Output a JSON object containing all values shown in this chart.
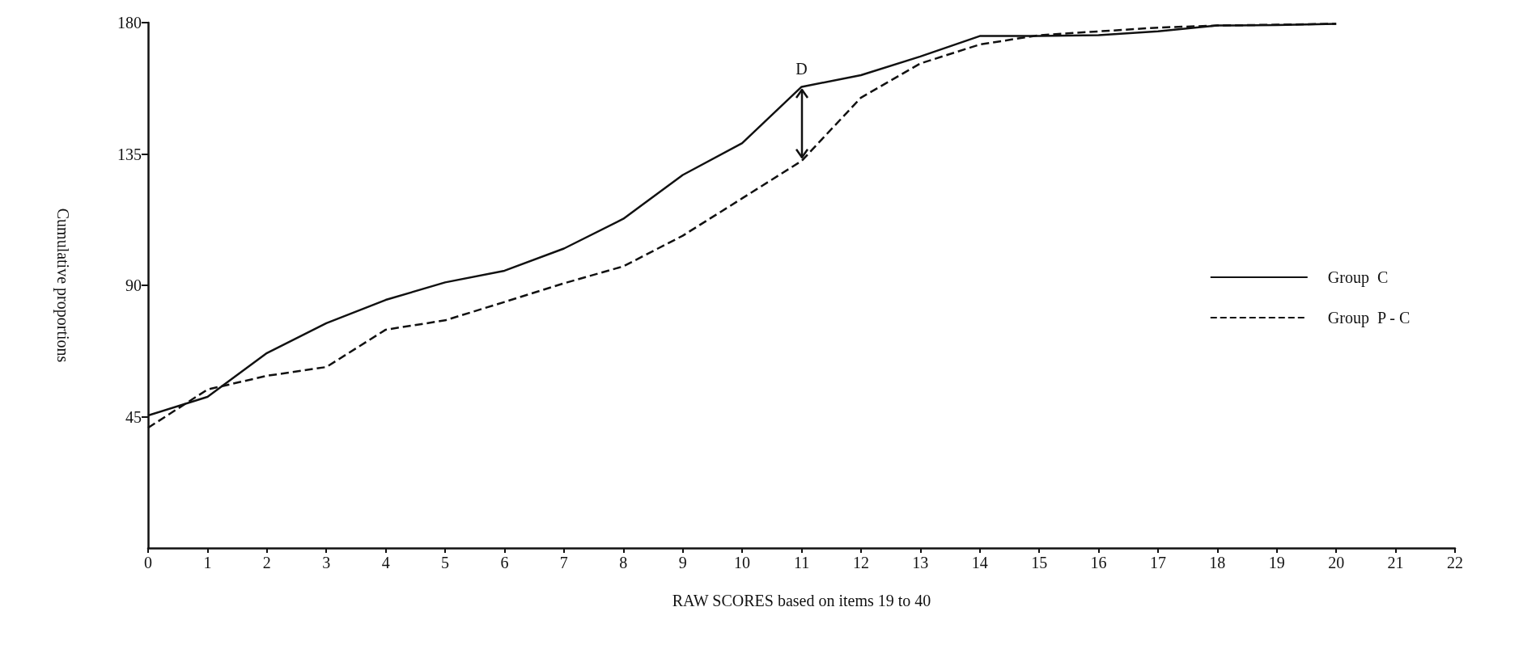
{
  "chart_data": {
    "type": "line",
    "xlabel": "RAW SCORES based on items 19 to 40",
    "ylabel": "Cumulative proportions",
    "x": [
      0,
      1,
      2,
      3,
      4,
      5,
      6,
      7,
      8,
      9,
      10,
      11,
      12,
      13,
      14,
      15,
      16,
      17,
      18,
      19,
      20
    ],
    "series": [
      {
        "name": "Group  C",
        "color": "#111111",
        "line_style": "solid",
        "values": [
          45.4,
          51.8,
          66.8,
          77,
          85,
          91,
          95,
          102.6,
          112.8,
          127.8,
          138.7,
          158,
          162,
          168.4,
          175.4,
          175.4,
          175.7,
          177,
          179,
          179.2,
          179.6
        ]
      },
      {
        "name": "Group  P - C",
        "color": "#111111",
        "line_style": "dashed",
        "values": [
          41.2,
          54.3,
          59,
          62,
          74.8,
          78,
          84.3,
          90.7,
          96.5,
          107,
          119.8,
          132.6,
          154.3,
          166,
          172.5,
          175.7,
          177,
          178.3,
          179,
          179.3,
          179.6
        ]
      }
    ],
    "annotations": [
      {
        "text": "D",
        "x": 11,
        "y": 158
      }
    ],
    "xlim": [
      0,
      22
    ],
    "xticks": [
      0,
      1,
      2,
      3,
      4,
      5,
      6,
      7,
      8,
      9,
      10,
      11,
      12,
      13,
      14,
      15,
      16,
      17,
      18,
      19,
      20,
      21,
      22
    ],
    "ylim": [
      0,
      180
    ],
    "yticks": [
      45,
      90,
      135,
      180
    ],
    "grid": false,
    "legend": "right",
    "marker": "none"
  }
}
